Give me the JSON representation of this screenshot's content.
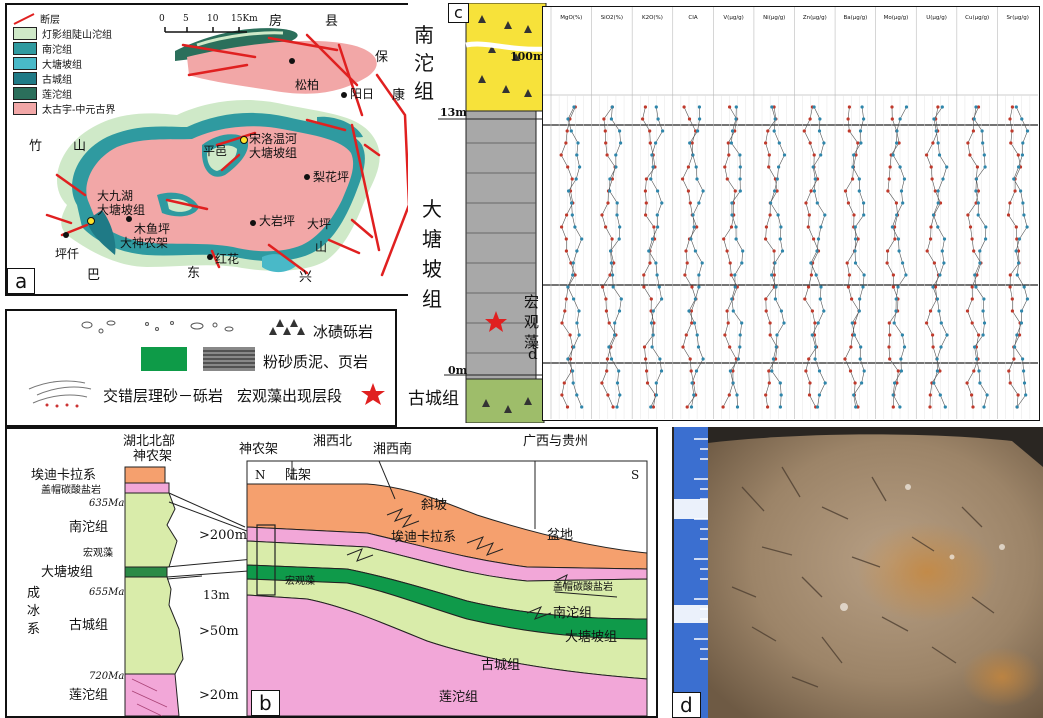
{
  "panel_a": {
    "label": "a",
    "legend": [
      {
        "name": "断层",
        "color": "#e02020",
        "kind": "line"
      },
      {
        "name": "灯影组陡山沱组",
        "color": "#cfe9c8"
      },
      {
        "name": "南沱组",
        "color": "#2f9aa0"
      },
      {
        "name": "大塘坡组",
        "color": "#49b9c8"
      },
      {
        "name": "古城组",
        "color": "#1f7a86"
      },
      {
        "name": "莲沱组",
        "color": "#2b6f5b"
      },
      {
        "name": "太古宇-中元古界",
        "color": "#f2a7a7"
      }
    ],
    "scale": [
      "0",
      "5",
      "10",
      "15Km"
    ],
    "places": {
      "fang": "房",
      "xian": "县",
      "bao": "保",
      "kang": "康",
      "songbai": "松柏",
      "yangri": "阳日",
      "zhu": "竹",
      "shan1": "山",
      "songluo": "宋洛温河",
      "dtp1": "大塘坡组",
      "pingqian": "平邑",
      "lihuaping": "梨花坪",
      "dajiuhu": "大九湖",
      "dtp2": "大塘坡组",
      "muyuping": "木鱼坪",
      "shennongjia": "大神农架",
      "dayanping": "大岩坪",
      "daping": "大坪",
      "shan2": "山",
      "pingqian2": "坪仟",
      "ba": "巴",
      "dong": "东",
      "hongua": "红花",
      "xing": "兴"
    }
  },
  "panel_legend": {
    "items": [
      "冰碛砾岩",
      "粉砂质泥、页岩",
      "交错层理砂－砾岩",
      "宏观藻出现层段"
    ]
  },
  "panel_b": {
    "label": "b",
    "col_title": [
      "湖北北部",
      "神农架"
    ],
    "col_units": [
      "埃迪卡拉系",
      "盖帽碳酸盐岩",
      "南沱组",
      "宏观藻",
      "大塘坡组",
      "成",
      "冰",
      "系",
      "古城组",
      "莲沱组"
    ],
    "ages": [
      "635Ma",
      "655Ma",
      "720Ma"
    ],
    "thickness": [
      ">200m",
      "13m",
      ">50m",
      ">20m"
    ],
    "section_heads": [
      "神农架",
      "湘西北",
      "湘西南",
      "广西与贵州"
    ],
    "ns": [
      "N",
      "S"
    ],
    "zones": [
      "陆架",
      "斜坡",
      "盆地"
    ],
    "units": [
      "埃迪卡拉系",
      "盖帽碳酸盐岩",
      "宏观藻",
      "南沱组",
      "大塘坡组",
      "古城组",
      "莲沱组"
    ]
  },
  "panel_c": {
    "label": "c",
    "strat": [
      "南",
      "沱",
      "组",
      "大",
      "塘",
      "坡",
      "组",
      "古城组"
    ],
    "depths": [
      "100m",
      "13m",
      "0m"
    ],
    "macro": [
      "宏",
      "观",
      "藻"
    ],
    "d_label": "d",
    "headers": [
      "MgO(%)",
      "SiO2(%)",
      "K2O(%)",
      "CIA",
      "V(μg/g)",
      "Ni(μg/g)",
      "Zn(μg/g)",
      "Ba(μg/g)",
      "Mo(μg/g)",
      "U(μg/g)",
      "Cu(μg/g)",
      "Sr(μg/g)"
    ]
  },
  "panel_d": {
    "label": "d"
  }
}
